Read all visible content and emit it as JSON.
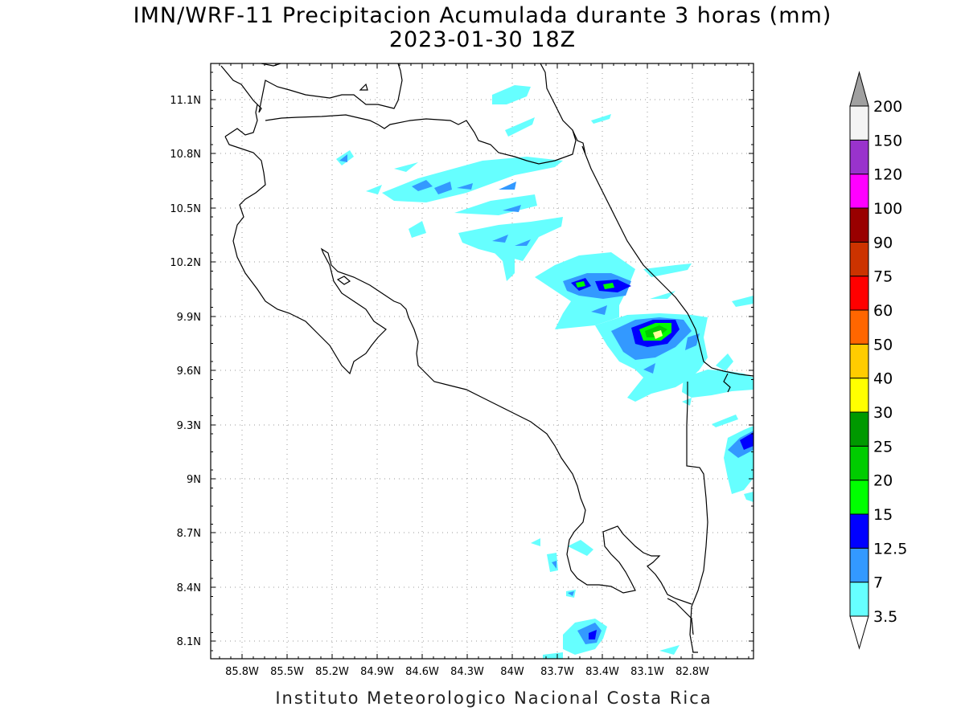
{
  "title": {
    "line1": "IMN/WRF-11 Precipitacion Acumulada durante 3 horas (mm)",
    "line2": "2023-01-30 18Z"
  },
  "footer": "Instituto Meteorologico Nacional Costa Rica",
  "axes": {
    "lon_labels": [
      "85.8W",
      "85.5W",
      "85.2W",
      "84.9W",
      "84.6W",
      "84.3W",
      "84W",
      "83.7W",
      "83.4W",
      "83.1W",
      "82.8W"
    ],
    "lat_labels": [
      "11.1N",
      "10.8N",
      "10.5N",
      "10.2N",
      "9.9N",
      "9.6N",
      "9.3N",
      "9N",
      "8.7N",
      "8.4N",
      "8.1N"
    ],
    "lon_range": [
      -86.0,
      -82.5
    ],
    "lat_range": [
      8.0,
      11.3
    ],
    "grid": "dotted"
  },
  "colorbar": {
    "labels": [
      "3.5",
      "7",
      "12.5",
      "15",
      "20",
      "25",
      "30",
      "40",
      "50",
      "60",
      "75",
      "90",
      "100",
      "120",
      "150",
      "200"
    ],
    "colors": [
      "#66ffff",
      "#3399ff",
      "#0000ff",
      "#00ff00",
      "#00cc00",
      "#009900",
      "#ffff00",
      "#ffcc00",
      "#ff6600",
      "#ff0000",
      "#cc3300",
      "#990000",
      "#ff00ff",
      "#9933cc",
      "#f4f4f4"
    ],
    "under_color": "#ffffff",
    "over_color": "#a0a0a0"
  }
}
